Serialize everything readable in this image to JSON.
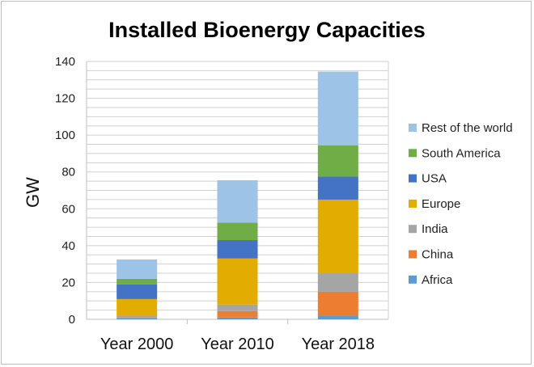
{
  "chart_data": {
    "type": "bar",
    "stacked": true,
    "title": "Installed Bioenergy Capacities",
    "xlabel": "",
    "ylabel": "GW",
    "ylim": [
      0,
      140
    ],
    "yticks": [
      0,
      20,
      40,
      60,
      80,
      100,
      120,
      140
    ],
    "categories": [
      "Year 2000",
      "Year 2010",
      "Year 2018"
    ],
    "series": [
      {
        "name": "Africa",
        "color": "#5b9bd5",
        "values": [
          0.5,
          1,
          2
        ]
      },
      {
        "name": "China",
        "color": "#ed7d31",
        "values": [
          0.5,
          3.5,
          13
        ]
      },
      {
        "name": "India",
        "color": "#a5a5a5",
        "values": [
          1,
          3.5,
          10
        ]
      },
      {
        "name": "Europe",
        "color": "#e3ac00",
        "values": [
          9,
          25,
          40
        ]
      },
      {
        "name": "USA",
        "color": "#4472c4",
        "values": [
          8,
          10,
          12.5
        ]
      },
      {
        "name": "South America",
        "color": "#70ad47",
        "values": [
          3,
          9.5,
          17
        ]
      },
      {
        "name": "Rest of the world",
        "color": "#9dc3e6",
        "values": [
          10.5,
          23,
          40
        ]
      }
    ],
    "grid": "horizontal",
    "legend_position": "right"
  }
}
